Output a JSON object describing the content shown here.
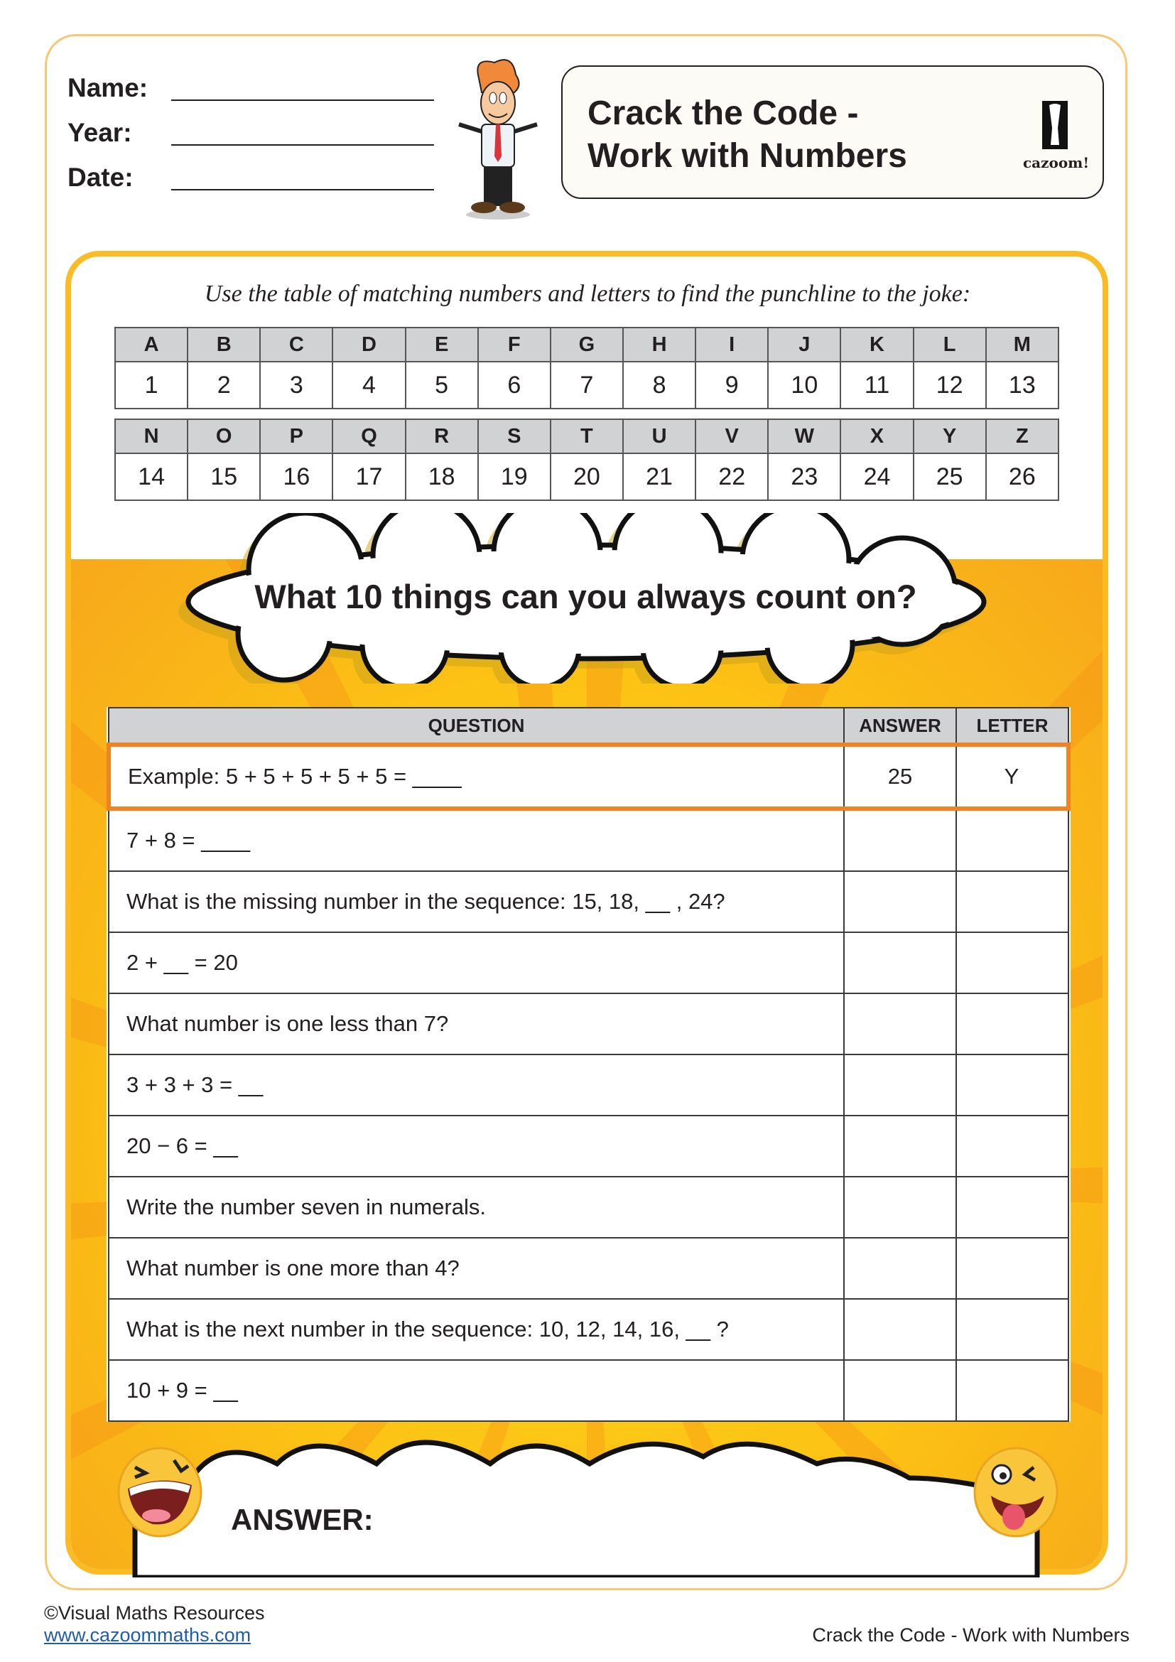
{
  "header": {
    "fields": [
      {
        "label": "Name:"
      },
      {
        "label": "Year:"
      },
      {
        "label": "Date:"
      }
    ],
    "title_line1": "Crack the Code -",
    "title_line2": "Work with Numbers",
    "logo_text": "cazoom!"
  },
  "instructions": "Use the table of matching numbers and letters to find the punchline to the joke:",
  "code_table": {
    "row1_letters": [
      "A",
      "B",
      "C",
      "D",
      "E",
      "F",
      "G",
      "H",
      "I",
      "J",
      "K",
      "L",
      "M"
    ],
    "row1_numbers": [
      "1",
      "2",
      "3",
      "4",
      "5",
      "6",
      "7",
      "8",
      "9",
      "10",
      "11",
      "12",
      "13"
    ],
    "row2_letters": [
      "N",
      "O",
      "P",
      "Q",
      "R",
      "S",
      "T",
      "U",
      "V",
      "W",
      "X",
      "Y",
      "Z"
    ],
    "row2_numbers": [
      "14",
      "15",
      "16",
      "17",
      "18",
      "19",
      "20",
      "21",
      "22",
      "23",
      "24",
      "25",
      "26"
    ]
  },
  "joke": "What 10 things can you always count on?",
  "questions": {
    "headers": {
      "question": "QUESTION",
      "answer": "ANSWER",
      "letter": "LETTER"
    },
    "example": {
      "question": "Example:  5 + 5 + 5 + 5 + 5  =  ____",
      "answer": "25",
      "letter": "Y"
    },
    "rows": [
      "7 + 8  =  ____",
      "What is the missing number in the sequence:  15, 18, __ , 24?",
      "2 + __ = 20",
      "What number is one less than 7?",
      "3 + 3 + 3 = __",
      "20 − 6 = __",
      "Write the number seven in numerals.",
      "What number is one more than 4?",
      "What is the next number in the sequence:  10, 12, 14, 16, __ ?",
      "10 + 9 = __"
    ]
  },
  "answer_label": "ANSWER:",
  "footer": {
    "copyright": "©Visual Maths Resources",
    "link": "www.cazoommaths.com",
    "doc_title": "Crack the Code - Work with Numbers"
  },
  "colors": {
    "frame": "#fbbb25",
    "highlight": "#f08222",
    "header_fill": "#d1d2d4"
  }
}
